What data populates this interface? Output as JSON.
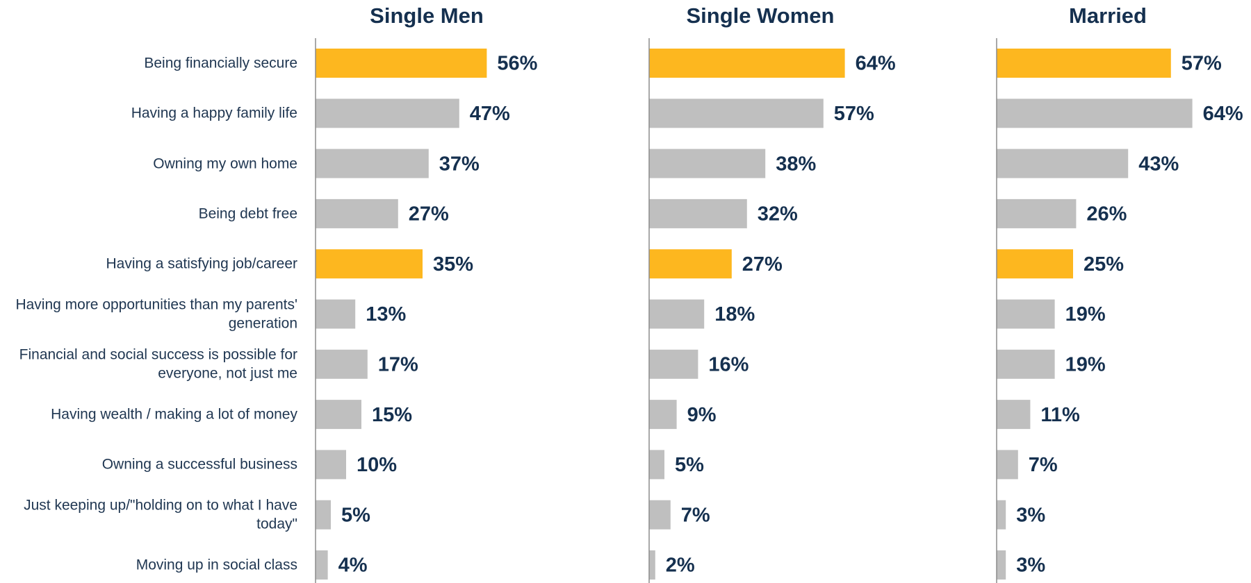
{
  "chart_data": {
    "type": "bar",
    "orientation": "horizontal",
    "categories": [
      "Being financially secure",
      "Having a happy family life",
      "Owning my own home",
      "Being debt free",
      "Having a satisfying job/career",
      "Having more opportunities than my parents' generation",
      "Financial and social success is possible for everyone, not just me",
      "Having wealth / making a lot of money",
      "Owning a successful business",
      "Just keeping up/\"holding on to what I have today\"",
      "Moving up in social class"
    ],
    "xlim": [
      0,
      100
    ],
    "series": [
      {
        "name": "Single Men",
        "values": [
          56,
          47,
          37,
          27,
          35,
          13,
          17,
          15,
          10,
          5,
          4
        ],
        "value_labels": [
          "56%",
          "47%",
          "37%",
          "27%",
          "35%",
          "13%",
          "17%",
          "15%",
          "10%",
          "5%",
          "4%"
        ],
        "colors": [
          "#fdb71f",
          "#bfbfbf",
          "#bfbfbf",
          "#bfbfbf",
          "#fdb71f",
          "#bfbfbf",
          "#bfbfbf",
          "#bfbfbf",
          "#bfbfbf",
          "#bfbfbf",
          "#bfbfbf"
        ]
      },
      {
        "name": "Single Women",
        "values": [
          64,
          57,
          38,
          32,
          27,
          18,
          16,
          9,
          5,
          7,
          2
        ],
        "value_labels": [
          "64%",
          "57%",
          "38%",
          "32%",
          "27%",
          "18%",
          "16%",
          "9%",
          "5%",
          "7%",
          "2%"
        ],
        "colors": [
          "#fdb71f",
          "#bfbfbf",
          "#bfbfbf",
          "#bfbfbf",
          "#fdb71f",
          "#bfbfbf",
          "#bfbfbf",
          "#bfbfbf",
          "#bfbfbf",
          "#bfbfbf",
          "#bfbfbf"
        ]
      },
      {
        "name": "Married",
        "values": [
          57,
          64,
          43,
          26,
          25,
          19,
          19,
          11,
          7,
          3,
          3
        ],
        "value_labels": [
          "57%",
          "64%",
          "43%",
          "26%",
          "25%",
          "19%",
          "19%",
          "11%",
          "7%",
          "3%",
          "3%"
        ],
        "colors": [
          "#fdb71f",
          "#bfbfbf",
          "#bfbfbf",
          "#bfbfbf",
          "#fdb71f",
          "#bfbfbf",
          "#bfbfbf",
          "#bfbfbf",
          "#bfbfbf",
          "#bfbfbf",
          "#bfbfbf"
        ]
      }
    ]
  }
}
